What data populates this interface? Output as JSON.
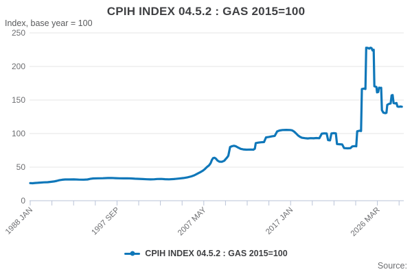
{
  "header": {
    "title": "CPIH INDEX 04.5.2 : GAS 2015=100",
    "subtitle": "Index, base year = 100"
  },
  "legend": {
    "label": "CPIH INDEX 04.5.2 : GAS 2015=100"
  },
  "source_label": "Source:",
  "colors": {
    "line": "#0f77b9",
    "grid": "#e6e6e6",
    "axis": "#b9c3d7",
    "tick_text": "#6d6e71",
    "title_text": "#3f4043"
  },
  "chart_data": {
    "type": "line",
    "title": "CPIH INDEX 04.5.2 : GAS 2015=100",
    "subtitle": "Index, base year = 100",
    "xlabel": "",
    "ylabel": "Index, base year = 100",
    "ylim": [
      0,
      250
    ],
    "yticks": [
      0,
      50,
      100,
      150,
      200,
      250
    ],
    "xlim": [
      1988.0,
      2026.5
    ],
    "x_num_ticks": 18,
    "xtick_labeled_indices": [
      0,
      4,
      8,
      12,
      16
    ],
    "xtick_labels": [
      "1988 JAN",
      "1997 SEP",
      "2007 MAY",
      "2017 JAN",
      "2026 MAR"
    ],
    "grid": "horizontal-only",
    "legend_position": "bottom",
    "series": [
      {
        "name": "CPIH INDEX 04.5.2 : GAS 2015=100",
        "points": [
          [
            1988.0,
            26.2
          ],
          [
            1988.25,
            26.0
          ],
          [
            1988.5,
            26.4
          ],
          [
            1988.75,
            26.6
          ],
          [
            1989.0,
            26.9
          ],
          [
            1989.4,
            27.3
          ],
          [
            1989.8,
            27.6
          ],
          [
            1990.1,
            28.1
          ],
          [
            1990.45,
            28.7
          ],
          [
            1990.75,
            29.6
          ],
          [
            1991.0,
            30.5
          ],
          [
            1991.3,
            31.2
          ],
          [
            1991.6,
            31.6
          ],
          [
            1992.0,
            31.6
          ],
          [
            1992.5,
            31.7
          ],
          [
            1993.0,
            31.4
          ],
          [
            1993.5,
            31.3
          ],
          [
            1993.9,
            31.6
          ],
          [
            1994.2,
            32.6
          ],
          [
            1994.5,
            33.2
          ],
          [
            1995.0,
            33.4
          ],
          [
            1995.5,
            33.5
          ],
          [
            1996.0,
            33.8
          ],
          [
            1996.4,
            33.9
          ],
          [
            1996.8,
            33.6
          ],
          [
            1997.2,
            33.4
          ],
          [
            1997.6,
            33.3
          ],
          [
            1998.0,
            33.4
          ],
          [
            1998.4,
            33.2
          ],
          [
            1998.8,
            32.8
          ],
          [
            1999.2,
            32.5
          ],
          [
            1999.6,
            32.2
          ],
          [
            2000.0,
            31.9
          ],
          [
            2000.4,
            31.7
          ],
          [
            2000.8,
            31.9
          ],
          [
            2001.1,
            32.3
          ],
          [
            2001.5,
            32.4
          ],
          [
            2001.9,
            32.0
          ],
          [
            2002.3,
            31.8
          ],
          [
            2002.8,
            32.2
          ],
          [
            2003.3,
            33.0
          ],
          [
            2003.8,
            33.8
          ],
          [
            2004.2,
            34.8
          ],
          [
            2004.6,
            36.2
          ],
          [
            2004.9,
            37.8
          ],
          [
            2005.2,
            40.0
          ],
          [
            2005.5,
            42.2
          ],
          [
            2005.8,
            44.8
          ],
          [
            2006.0,
            47.0
          ],
          [
            2006.2,
            50.0
          ],
          [
            2006.45,
            53.0
          ],
          [
            2006.6,
            56.0
          ],
          [
            2006.72,
            60.5
          ],
          [
            2006.85,
            63.5
          ],
          [
            2007.0,
            64.0
          ],
          [
            2007.15,
            62.5
          ],
          [
            2007.3,
            59.8
          ],
          [
            2007.5,
            58.2
          ],
          [
            2007.75,
            58.0
          ],
          [
            2008.0,
            59.5
          ],
          [
            2008.15,
            62.0
          ],
          [
            2008.3,
            64.5
          ],
          [
            2008.42,
            67.0
          ],
          [
            2008.5,
            73.0
          ],
          [
            2008.6,
            80.0
          ],
          [
            2008.8,
            81.2
          ],
          [
            2009.0,
            81.8
          ],
          [
            2009.2,
            81.0
          ],
          [
            2009.45,
            79.0
          ],
          [
            2009.7,
            77.2
          ],
          [
            2009.95,
            76.4
          ],
          [
            2010.3,
            76.0
          ],
          [
            2010.7,
            76.2
          ],
          [
            2011.0,
            76.0
          ],
          [
            2011.15,
            77.5
          ],
          [
            2011.25,
            85.8
          ],
          [
            2011.5,
            86.5
          ],
          [
            2011.8,
            87.0
          ],
          [
            2012.1,
            87.3
          ],
          [
            2012.3,
            94.3
          ],
          [
            2012.6,
            95.0
          ],
          [
            2012.9,
            95.8
          ],
          [
            2013.2,
            96.5
          ],
          [
            2013.45,
            103.2
          ],
          [
            2013.7,
            104.6
          ],
          [
            2014.0,
            105.3
          ],
          [
            2014.4,
            105.5
          ],
          [
            2014.8,
            105.3
          ],
          [
            2015.0,
            104.8
          ],
          [
            2015.2,
            103.0
          ],
          [
            2015.4,
            100.2
          ],
          [
            2015.6,
            97.2
          ],
          [
            2015.8,
            95.2
          ],
          [
            2016.0,
            93.8
          ],
          [
            2016.3,
            93.2
          ],
          [
            2016.6,
            92.8
          ],
          [
            2016.9,
            93.2
          ],
          [
            2017.2,
            93.0
          ],
          [
            2017.5,
            93.4
          ],
          [
            2017.8,
            93.1
          ],
          [
            2018.05,
            99.9
          ],
          [
            2018.3,
            100.3
          ],
          [
            2018.55,
            100.1
          ],
          [
            2018.7,
            90.3
          ],
          [
            2018.9,
            89.9
          ],
          [
            2019.05,
            100.2
          ],
          [
            2019.3,
            100.6
          ],
          [
            2019.5,
            100.3
          ],
          [
            2019.62,
            84.4
          ],
          [
            2019.9,
            84.1
          ],
          [
            2020.15,
            83.9
          ],
          [
            2020.35,
            78.4
          ],
          [
            2020.7,
            78.1
          ],
          [
            2021.0,
            78.3
          ],
          [
            2021.2,
            80.9
          ],
          [
            2021.45,
            81.3
          ],
          [
            2021.6,
            81.0
          ],
          [
            2021.7,
            103.4
          ],
          [
            2021.95,
            104.3
          ],
          [
            2022.1,
            103.8
          ],
          [
            2022.18,
            166.4
          ],
          [
            2022.4,
            167.0
          ],
          [
            2022.55,
            166.4
          ],
          [
            2022.63,
            227.9
          ],
          [
            2022.8,
            227.5
          ],
          [
            2022.95,
            226.5
          ],
          [
            2023.05,
            227.9
          ],
          [
            2023.18,
            227.3
          ],
          [
            2023.28,
            223.9
          ],
          [
            2023.4,
            224.9
          ],
          [
            2023.47,
            170.4
          ],
          [
            2023.6,
            169.9
          ],
          [
            2023.68,
            169.3
          ],
          [
            2023.75,
            161.4
          ],
          [
            2023.87,
            161.9
          ],
          [
            2023.95,
            168.4
          ],
          [
            2024.1,
            168.0
          ],
          [
            2024.17,
            168.3
          ],
          [
            2024.25,
            134.9
          ],
          [
            2024.4,
            131.2
          ],
          [
            2024.6,
            130.4
          ],
          [
            2024.72,
            131.0
          ],
          [
            2024.8,
            142.9
          ],
          [
            2025.0,
            144.4
          ],
          [
            2025.15,
            144.8
          ],
          [
            2025.25,
            156.9
          ],
          [
            2025.35,
            157.3
          ],
          [
            2025.45,
            145.4
          ],
          [
            2025.6,
            145.0
          ],
          [
            2025.75,
            145.5
          ],
          [
            2025.85,
            140.4
          ],
          [
            2026.0,
            139.9
          ],
          [
            2026.15,
            140.3
          ],
          [
            2026.3,
            140.0
          ]
        ]
      }
    ]
  }
}
